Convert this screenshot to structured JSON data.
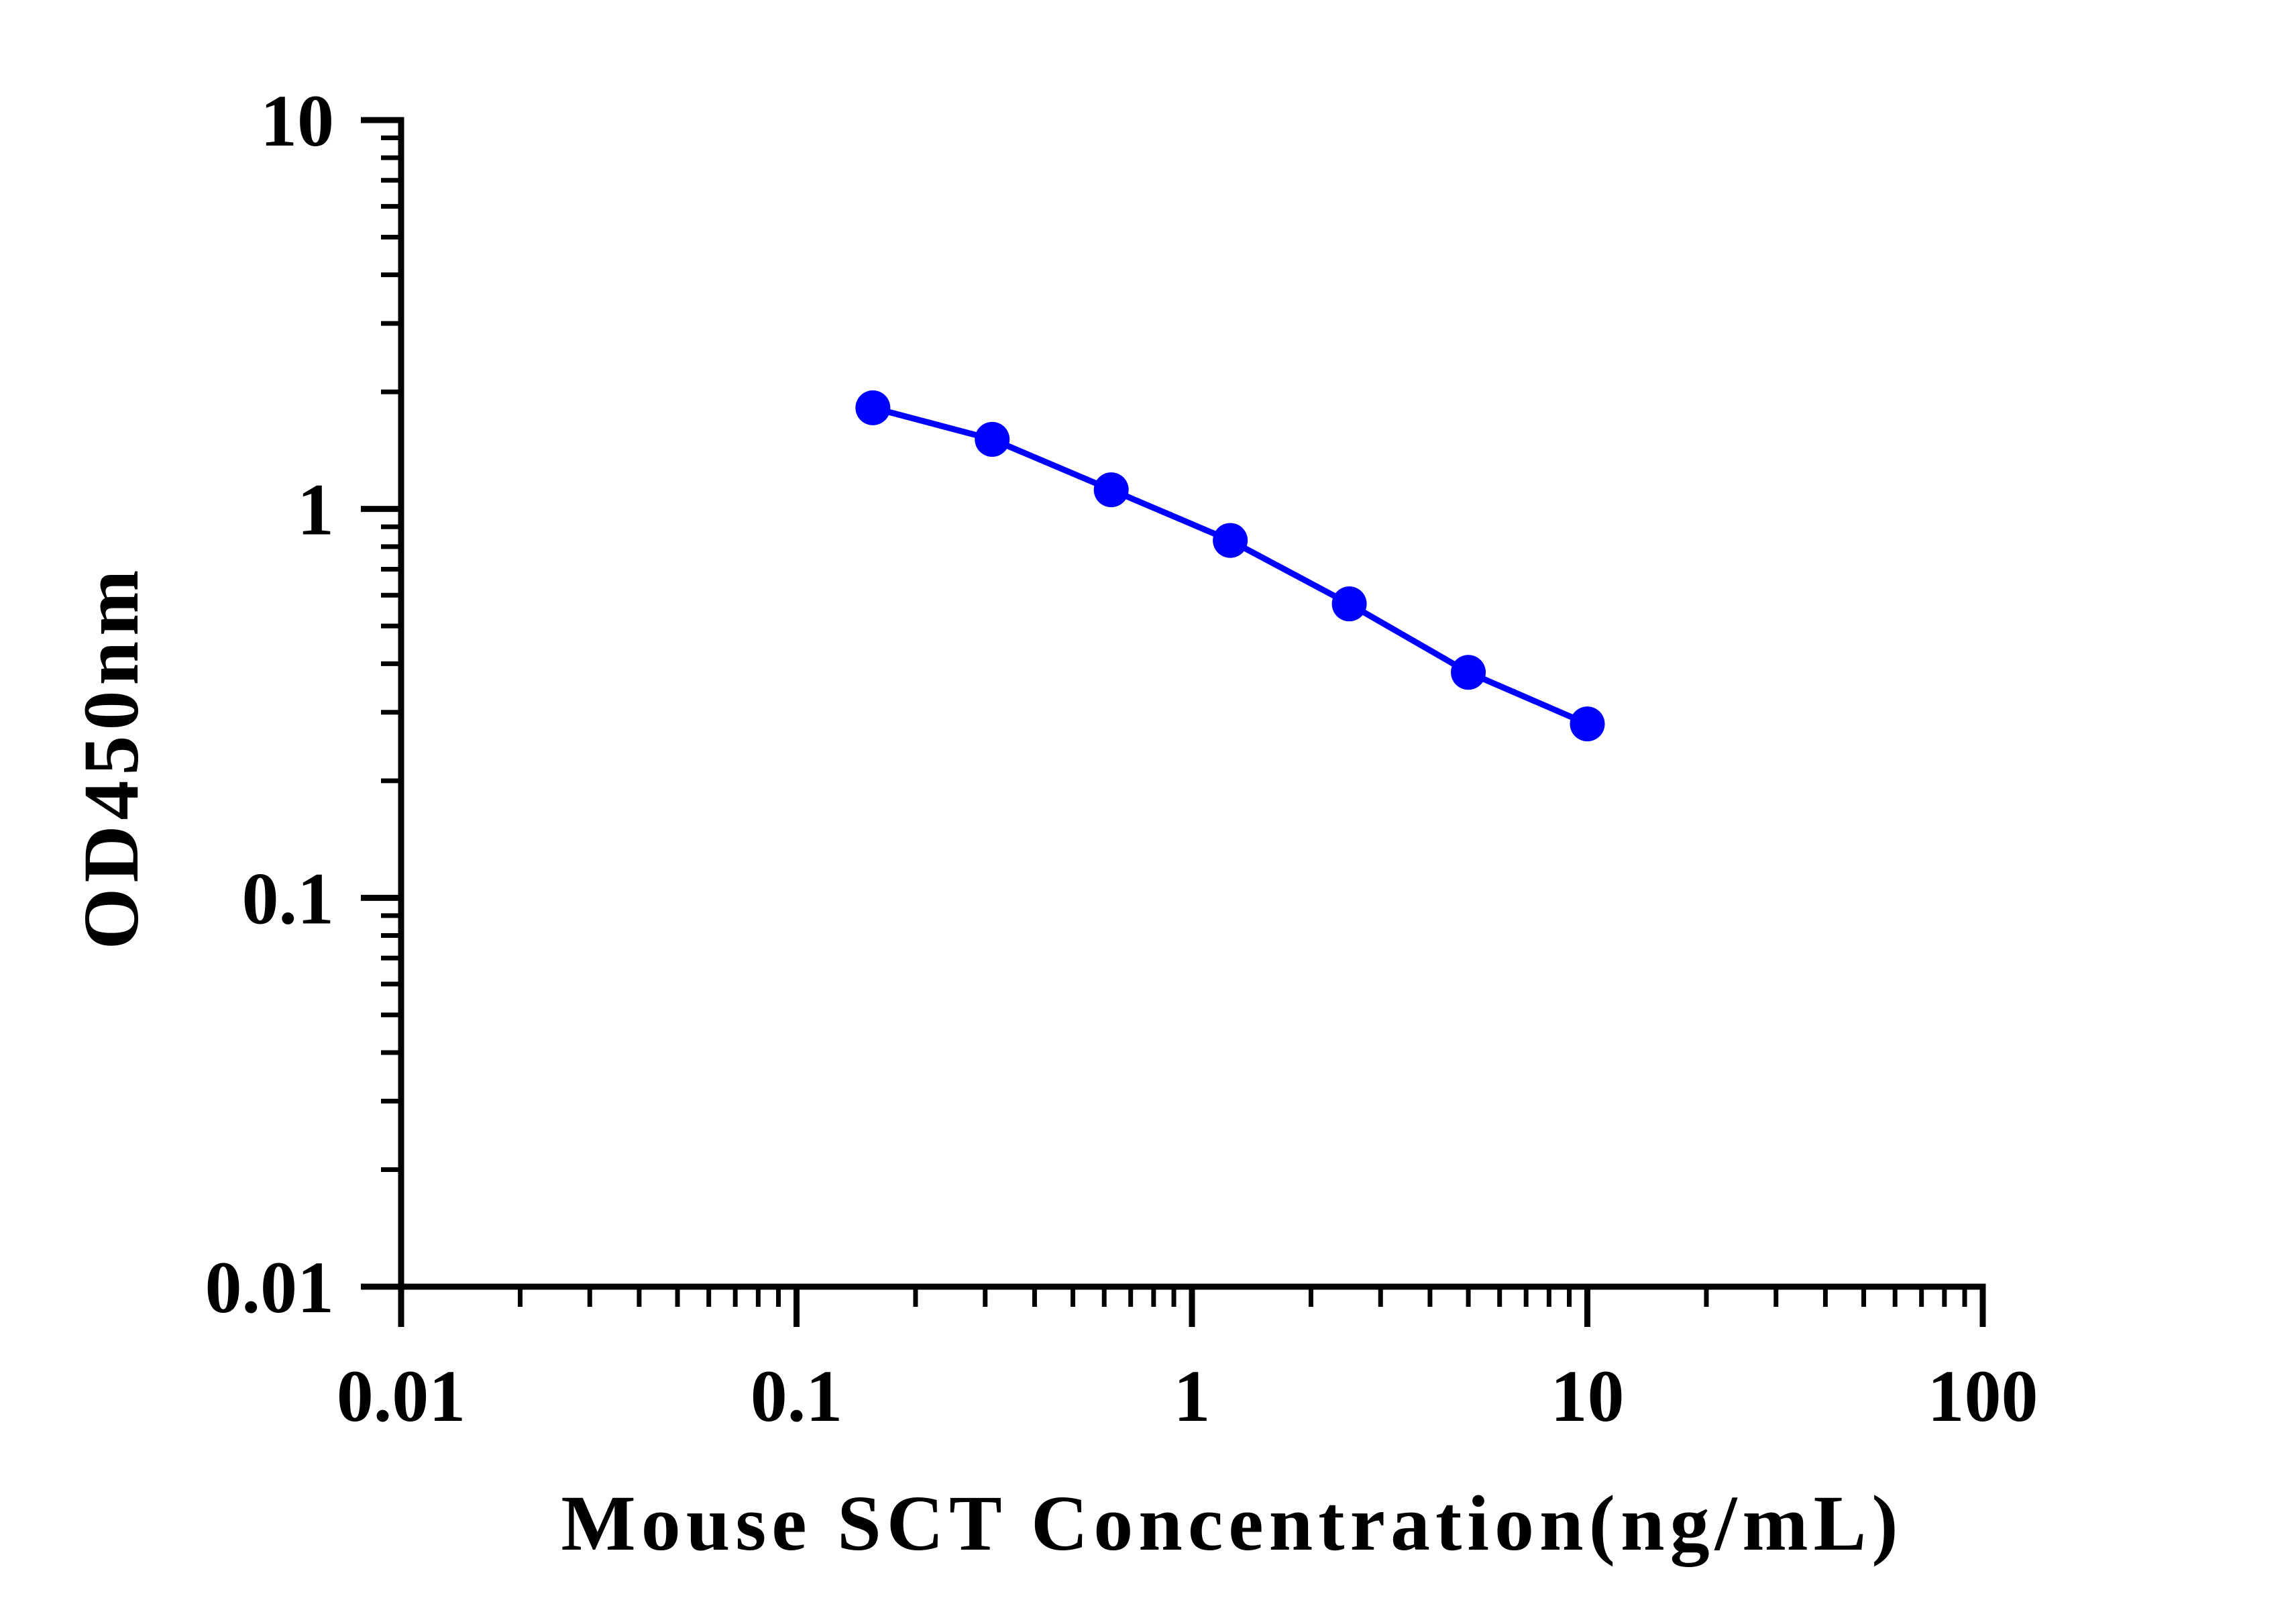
{
  "chart_data": {
    "type": "line",
    "xlabel": "Mouse SCT Concentration(ng/mL)",
    "ylabel": "OD450nm",
    "xscale": "log",
    "yscale": "log",
    "xlim": [
      0.01,
      100
    ],
    "ylim": [
      0.01,
      10
    ],
    "x_ticks": [
      {
        "value": 0.01,
        "label": "0.01"
      },
      {
        "value": 0.1,
        "label": "0.1"
      },
      {
        "value": 1,
        "label": "1"
      },
      {
        "value": 10,
        "label": "10"
      },
      {
        "value": 100,
        "label": "100"
      }
    ],
    "y_ticks": [
      {
        "value": 0.01,
        "label": "0.01"
      },
      {
        "value": 0.1,
        "label": "0.1"
      },
      {
        "value": 1,
        "label": "1"
      },
      {
        "value": 10,
        "label": "10"
      }
    ],
    "grid": false,
    "legend": "none",
    "series": [
      {
        "color": "#0000ff",
        "x": [
          0.156,
          0.3125,
          0.625,
          1.25,
          2.5,
          5,
          10
        ],
        "y": [
          1.82,
          1.51,
          1.12,
          0.83,
          0.57,
          0.38,
          0.28
        ]
      }
    ]
  }
}
